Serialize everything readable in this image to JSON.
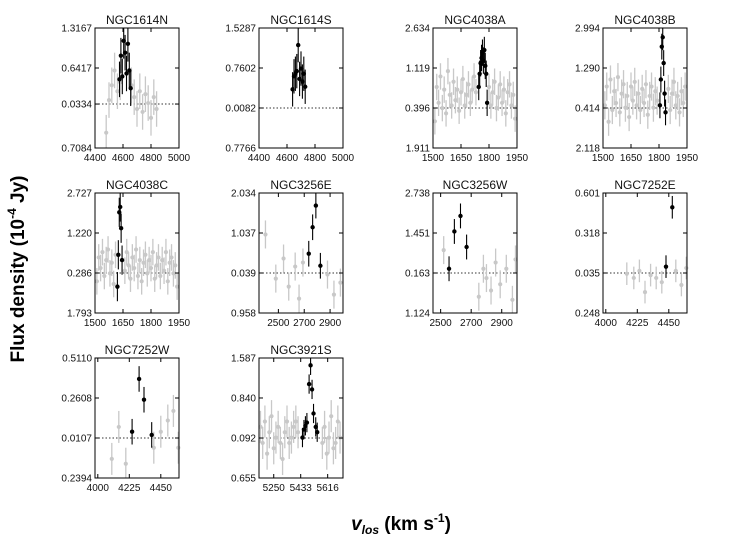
{
  "figure": {
    "ylabel": "Flux density (10",
    "ylabel_exp": "-4",
    "ylabel_unit": " Jy)",
    "xlabel": "v",
    "xlabel_sub": "los",
    "xlabel_unit": " (km s",
    "xlabel_exp": "-1",
    "xlabel_close": ")"
  },
  "colors": {
    "detected": "#000000",
    "spectrum": "#c8c8c8",
    "frame": "#000000"
  },
  "chart_data": [
    {
      "type": "scatter",
      "title": "NGC1614N",
      "xlim": [
        4400,
        5000
      ],
      "ylim": [
        -0.7084,
        1.3167
      ],
      "xticks": [
        4400,
        4600,
        4800,
        5000
      ],
      "xtick_labels": [
        "4400",
        "4600",
        "4800",
        "5000"
      ],
      "yticks": [
        -0.7084,
        0.0334,
        0.6417,
        1.3167
      ],
      "ytick_labels": [
        "0.7084",
        "0.0334",
        "0.6417",
        "1.3167"
      ],
      "baseline": 0.0334,
      "gray_x": [
        4480,
        4500,
        4520,
        4540,
        4560,
        4580,
        4660,
        4680,
        4700,
        4720,
        4740,
        4760,
        4780,
        4800,
        4820,
        4840
      ],
      "gray_y": [
        -0.45,
        0.1,
        0.35,
        0.6,
        0.25,
        0.4,
        0.35,
        0.15,
        -0.05,
        0.25,
        -0.1,
        0.2,
        0.05,
        -0.2,
        0.15,
        -0.05
      ],
      "gray_err": 0.3,
      "black_x": [
        4575,
        4585,
        4595,
        4605,
        4615,
        4625,
        4635,
        4645,
        4655
      ],
      "black_y": [
        0.45,
        0.85,
        0.5,
        1.1,
        0.9,
        0.55,
        1.05,
        0.6,
        0.3
      ],
      "black_err": 0.3
    },
    {
      "type": "scatter",
      "title": "NGC1614S",
      "xlim": [
        4400,
        5000
      ],
      "ylim": [
        -0.7766,
        1.5287
      ],
      "xticks": [
        4400,
        4600,
        4800,
        5000
      ],
      "xtick_labels": [
        "4400",
        "4600",
        "4800",
        "5000"
      ],
      "yticks": [
        -0.7766,
        -0.0082,
        0.7602,
        1.5287
      ],
      "ytick_labels": [
        "0.7766",
        "0.0082",
        "0.7602",
        "1.5287"
      ],
      "baseline": -0.0082,
      "gray_x": [],
      "gray_y": [],
      "gray_err": 0.3,
      "black_x": [
        4640,
        4650,
        4660,
        4670,
        4680,
        4690,
        4700,
        4710,
        4720,
        4730
      ],
      "black_y": [
        0.35,
        0.6,
        0.65,
        0.7,
        1.2,
        0.55,
        0.75,
        0.5,
        0.65,
        0.4
      ],
      "black_err": 0.33
    },
    {
      "type": "scatter",
      "title": "NGC4038A",
      "xlim": [
        1500,
        1950
      ],
      "ylim": [
        -1.911,
        2.634
      ],
      "xticks": [
        1500,
        1650,
        1800,
        1950
      ],
      "xtick_labels": [
        "1500",
        "1650",
        "1800",
        "1950"
      ],
      "yticks": [
        -1.911,
        -0.396,
        1.119,
        2.634
      ],
      "ytick_labels": [
        "1.911",
        "0.396",
        "1.119",
        "2.634"
      ],
      "baseline": -0.396,
      "gray_x": [
        1510,
        1520,
        1530,
        1540,
        1550,
        1560,
        1570,
        1580,
        1590,
        1600,
        1610,
        1620,
        1630,
        1640,
        1650,
        1660,
        1670,
        1680,
        1690,
        1700,
        1710,
        1720,
        1730,
        1800,
        1810,
        1820,
        1830,
        1840,
        1850,
        1860,
        1870,
        1880,
        1890,
        1900,
        1910,
        1920,
        1930,
        1940
      ],
      "gray_y": [
        -0.9,
        0.4,
        -0.2,
        0.8,
        -0.4,
        0.3,
        -0.6,
        1.0,
        0.1,
        -0.3,
        0.6,
        -0.1,
        0.3,
        -0.5,
        0.2,
        0.7,
        -0.3,
        0.1,
        0.5,
        -0.2,
        0.3,
        0.8,
        0.2,
        0.4,
        -0.3,
        0.2,
        0.6,
        -0.4,
        0.0,
        0.5,
        -0.2,
        0.3,
        -0.6,
        0.2,
        0.5,
        -0.3,
        0.1,
        -0.8
      ],
      "gray_err": 0.5,
      "black_x": [
        1745,
        1750,
        1755,
        1760,
        1765,
        1770,
        1775,
        1780,
        1785,
        1790
      ],
      "black_y": [
        0.4,
        0.9,
        1.3,
        1.5,
        1.7,
        1.4,
        1.8,
        1.2,
        0.9,
        -0.2
      ],
      "black_err": 0.5
    },
    {
      "type": "scatter",
      "title": "NGC4038B",
      "xlim": [
        1500,
        1950
      ],
      "ylim": [
        -2.118,
        2.994
      ],
      "xticks": [
        1500,
        1650,
        1800,
        1950
      ],
      "xtick_labels": [
        "1500",
        "1650",
        "1800",
        "1950"
      ],
      "yticks": [
        -2.118,
        -0.414,
        1.29,
        2.994
      ],
      "ytick_labels": [
        "2.118",
        "0.414",
        "1.290",
        "2.994"
      ],
      "baseline": -0.414,
      "gray_x": [
        1510,
        1520,
        1530,
        1540,
        1550,
        1560,
        1570,
        1580,
        1590,
        1600,
        1610,
        1620,
        1630,
        1640,
        1650,
        1660,
        1670,
        1680,
        1690,
        1700,
        1710,
        1720,
        1730,
        1740,
        1750,
        1760,
        1770,
        1780,
        1790,
        1850,
        1860,
        1870,
        1880,
        1890,
        1900,
        1910,
        1920,
        1930,
        1940
      ],
      "gray_y": [
        -0.3,
        0.5,
        -1.0,
        0.8,
        -0.5,
        0.3,
        -0.2,
        0.9,
        -0.6,
        0.2,
        0.6,
        -0.4,
        0.1,
        -0.8,
        0.5,
        -0.1,
        0.7,
        -0.3,
        0.2,
        -0.5,
        0.4,
        -0.2,
        0.6,
        -0.7,
        0.1,
        0.5,
        -0.4,
        0.3,
        -0.1,
        0.4,
        -0.5,
        0.2,
        0.7,
        -0.3,
        0.1,
        -0.6,
        0.3,
        -0.2,
        0.5
      ],
      "gray_err": 0.6,
      "black_x": [
        1805,
        1810,
        1815,
        1820,
        1825,
        1830,
        1835
      ],
      "black_y": [
        -0.3,
        0.8,
        2.2,
        2.6,
        1.5,
        0.2,
        -0.6
      ],
      "black_err": 0.55
    },
    {
      "type": "scatter",
      "title": "NGC4038C",
      "xlim": [
        1500,
        1950
      ],
      "ylim": [
        -1.793,
        2.727
      ],
      "xticks": [
        1500,
        1650,
        1800,
        1950
      ],
      "xtick_labels": [
        "1500",
        "1650",
        "1800",
        "1950"
      ],
      "yticks": [
        -1.793,
        -0.286,
        1.22,
        2.727
      ],
      "ytick_labels": [
        "1.793",
        "0.286",
        "1.220",
        "2.727"
      ],
      "baseline": -0.286,
      "gray_x": [
        1510,
        1520,
        1530,
        1540,
        1550,
        1560,
        1570,
        1580,
        1590,
        1600,
        1610,
        1660,
        1670,
        1680,
        1690,
        1700,
        1710,
        1720,
        1730,
        1740,
        1750,
        1760,
        1770,
        1780,
        1790,
        1800,
        1810,
        1820,
        1830,
        1840,
        1850,
        1860,
        1870,
        1880,
        1890,
        1900,
        1910,
        1920,
        1930,
        1940
      ],
      "gray_y": [
        -0.6,
        0.3,
        -0.1,
        0.5,
        -0.4,
        0.2,
        0.6,
        -0.3,
        0.1,
        -0.7,
        0.4,
        -0.2,
        0.5,
        0.0,
        -0.5,
        0.3,
        -0.1,
        0.6,
        -0.4,
        0.2,
        -0.6,
        0.1,
        0.4,
        -0.3,
        0.2,
        -0.1,
        0.5,
        -0.5,
        0.0,
        0.3,
        -0.4,
        0.2,
        -0.2,
        0.5,
        -0.6,
        0.1,
        0.3,
        -0.3,
        0.0,
        -0.8
      ],
      "gray_err": 0.5,
      "black_x": [
        1620,
        1625,
        1630,
        1635,
        1640,
        1645
      ],
      "black_y": [
        -0.8,
        0.4,
        2.0,
        2.2,
        1.4,
        0.2
      ],
      "black_err": 0.55
    },
    {
      "type": "scatter",
      "title": "NGC3256E",
      "xlim": [
        2350,
        3000
      ],
      "ylim": [
        -0.958,
        2.034
      ],
      "xticks": [
        2500,
        2700,
        2900
      ],
      "xtick_labels": [
        "2500",
        "2700",
        "2900"
      ],
      "yticks": [
        -0.958,
        0.039,
        1.037,
        2.034
      ],
      "ytick_labels": [
        "0.958",
        "0.039",
        "1.037",
        "2.034"
      ],
      "baseline": 0.039,
      "gray_x": [
        2400,
        2480,
        2540,
        2580,
        2630,
        2660,
        2690,
        2880,
        2930,
        2980
      ],
      "gray_y": [
        1.0,
        -0.1,
        0.4,
        -0.3,
        0.2,
        -0.6,
        0.3,
        0.0,
        -0.5,
        -0.2
      ],
      "gray_err": 0.35,
      "black_x": [
        2735,
        2765,
        2790,
        2825
      ],
      "black_y": [
        0.52,
        1.18,
        1.72,
        0.22
      ],
      "black_err": 0.32
    },
    {
      "type": "scatter",
      "title": "NGC3256W",
      "xlim": [
        2450,
        3000
      ],
      "ylim": [
        -1.124,
        2.738
      ],
      "xticks": [
        2500,
        2700,
        2900
      ],
      "xtick_labels": [
        "2500",
        "2700",
        "2900"
      ],
      "yticks": [
        -1.124,
        0.163,
        1.451,
        2.738
      ],
      "ytick_labels": [
        "1.124",
        "0.163",
        "1.451",
        "2.738"
      ],
      "baseline": 0.163,
      "gray_x": [
        2520,
        2750,
        2780,
        2800,
        2830,
        2860,
        2890,
        2930,
        2970,
        2990
      ],
      "gray_y": [
        0.9,
        -0.6,
        0.3,
        0.0,
        -0.4,
        0.5,
        -0.2,
        0.3,
        -0.7,
        0.6
      ],
      "gray_err": 0.45,
      "black_x": [
        2555,
        2590,
        2630,
        2670
      ],
      "black_y": [
        0.3,
        1.5,
        2.0,
        1.0
      ],
      "black_err": 0.4
    },
    {
      "type": "scatter",
      "title": "NGC7252E",
      "xlim": [
        3980,
        4580
      ],
      "ylim": [
        -0.248,
        0.601
      ],
      "xticks": [
        4000,
        4225,
        4450
      ],
      "xtick_labels": [
        "4000",
        "4225",
        "4450"
      ],
      "yticks": [
        -0.248,
        0.035,
        0.318,
        0.601
      ],
      "ytick_labels": [
        "0.248",
        "0.035",
        "0.318",
        "0.601"
      ],
      "baseline": 0.035,
      "gray_x": [
        4150,
        4200,
        4240,
        4280,
        4320,
        4360,
        4400,
        4500,
        4540,
        4575
      ],
      "gray_y": [
        0.03,
        0.0,
        0.05,
        -0.1,
        0.02,
        0.0,
        -0.03,
        0.05,
        -0.05,
        0.07
      ],
      "gray_err": 0.08,
      "black_x": [
        4430,
        4475
      ],
      "black_y": [
        0.08,
        0.5
      ],
      "black_err": 0.08
    },
    {
      "type": "scatter",
      "title": "NGC7252W",
      "xlim": [
        3980,
        4580
      ],
      "ylim": [
        -0.2394,
        0.511
      ],
      "xticks": [
        4000,
        4225,
        4450
      ],
      "xtick_labels": [
        "4000",
        "4225",
        "4450"
      ],
      "yticks": [
        -0.2394,
        0.0107,
        0.2608,
        0.511
      ],
      "ytick_labels": [
        "0.2394",
        "0.0107",
        "0.2608",
        "0.5110"
      ],
      "baseline": 0.0107,
      "gray_x": [
        4100,
        4150,
        4200,
        4400,
        4450,
        4500,
        4540,
        4575
      ],
      "gray_y": [
        -0.12,
        0.08,
        -0.15,
        -0.05,
        0.05,
        0.12,
        0.18,
        -0.05
      ],
      "gray_err": 0.1,
      "black_x": [
        4245,
        4295,
        4330,
        4385
      ],
      "black_y": [
        0.05,
        0.38,
        0.25,
        0.03
      ],
      "black_err": 0.08
    },
    {
      "type": "scatter",
      "title": "NGC3921S",
      "xlim": [
        5150,
        5720
      ],
      "ylim": [
        -0.655,
        1.587
      ],
      "xticks": [
        5250,
        5433,
        5616
      ],
      "xtick_labels": [
        "5250",
        "5433",
        "5616"
      ],
      "yticks": [
        -0.655,
        0.092,
        0.84,
        1.587
      ],
      "ytick_labels": [
        "0.655",
        "0.092",
        "0.840",
        "1.587"
      ],
      "baseline": 0.092,
      "gray_x": [
        5160,
        5175,
        5190,
        5205,
        5220,
        5235,
        5250,
        5265,
        5280,
        5295,
        5310,
        5325,
        5340,
        5355,
        5370,
        5385,
        5400,
        5415,
        5580,
        5595,
        5610,
        5625,
        5640,
        5655,
        5670,
        5685,
        5700
      ],
      "gray_y": [
        0.3,
        0.0,
        0.4,
        -0.2,
        0.2,
        0.5,
        -0.1,
        0.1,
        0.3,
        0.0,
        -0.3,
        0.2,
        0.4,
        0.0,
        0.1,
        0.3,
        0.4,
        0.2,
        0.0,
        0.3,
        -0.2,
        0.1,
        0.5,
        -0.1,
        0.0,
        0.4,
        0.1
      ],
      "gray_err": 0.3,
      "black_x": [
        5445,
        5455,
        5465,
        5475,
        5490,
        5500,
        5510,
        5520,
        5535,
        5545
      ],
      "black_y": [
        0.1,
        0.25,
        0.32,
        0.38,
        1.1,
        1.45,
        1.0,
        0.55,
        0.3,
        0.2
      ],
      "black_err": 0.18
    }
  ]
}
